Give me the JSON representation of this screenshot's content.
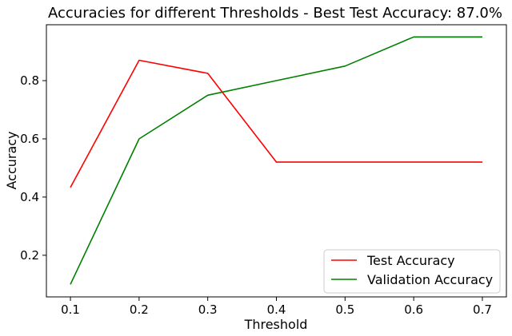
{
  "chart_data": {
    "type": "line",
    "title": "Accuracies for different Thresholds - Best Test Accuracy: 87.0%",
    "xlabel": "Threshold",
    "ylabel": "Accuracy",
    "x": [
      0.1,
      0.2,
      0.3,
      0.4,
      0.5,
      0.6,
      0.7
    ],
    "x_ticks": [
      "0.1",
      "0.2",
      "0.3",
      "0.4",
      "0.5",
      "0.6",
      "0.7"
    ],
    "y_ticks": [
      "0.2",
      "0.4",
      "0.6",
      "0.8"
    ],
    "xlim": [
      0.065,
      0.735
    ],
    "ylim": [
      0.057,
      0.992
    ],
    "grid": false,
    "legend_position": "bottom-right",
    "series": [
      {
        "name": "Test Accuracy",
        "color": "#ff0000",
        "values": [
          0.433,
          0.87,
          0.825,
          0.52,
          0.52,
          0.52,
          0.52
        ]
      },
      {
        "name": "Validation Accuracy",
        "color": "#008000",
        "values": [
          0.1,
          0.6,
          0.75,
          0.8,
          0.85,
          0.95,
          0.95
        ]
      }
    ]
  }
}
